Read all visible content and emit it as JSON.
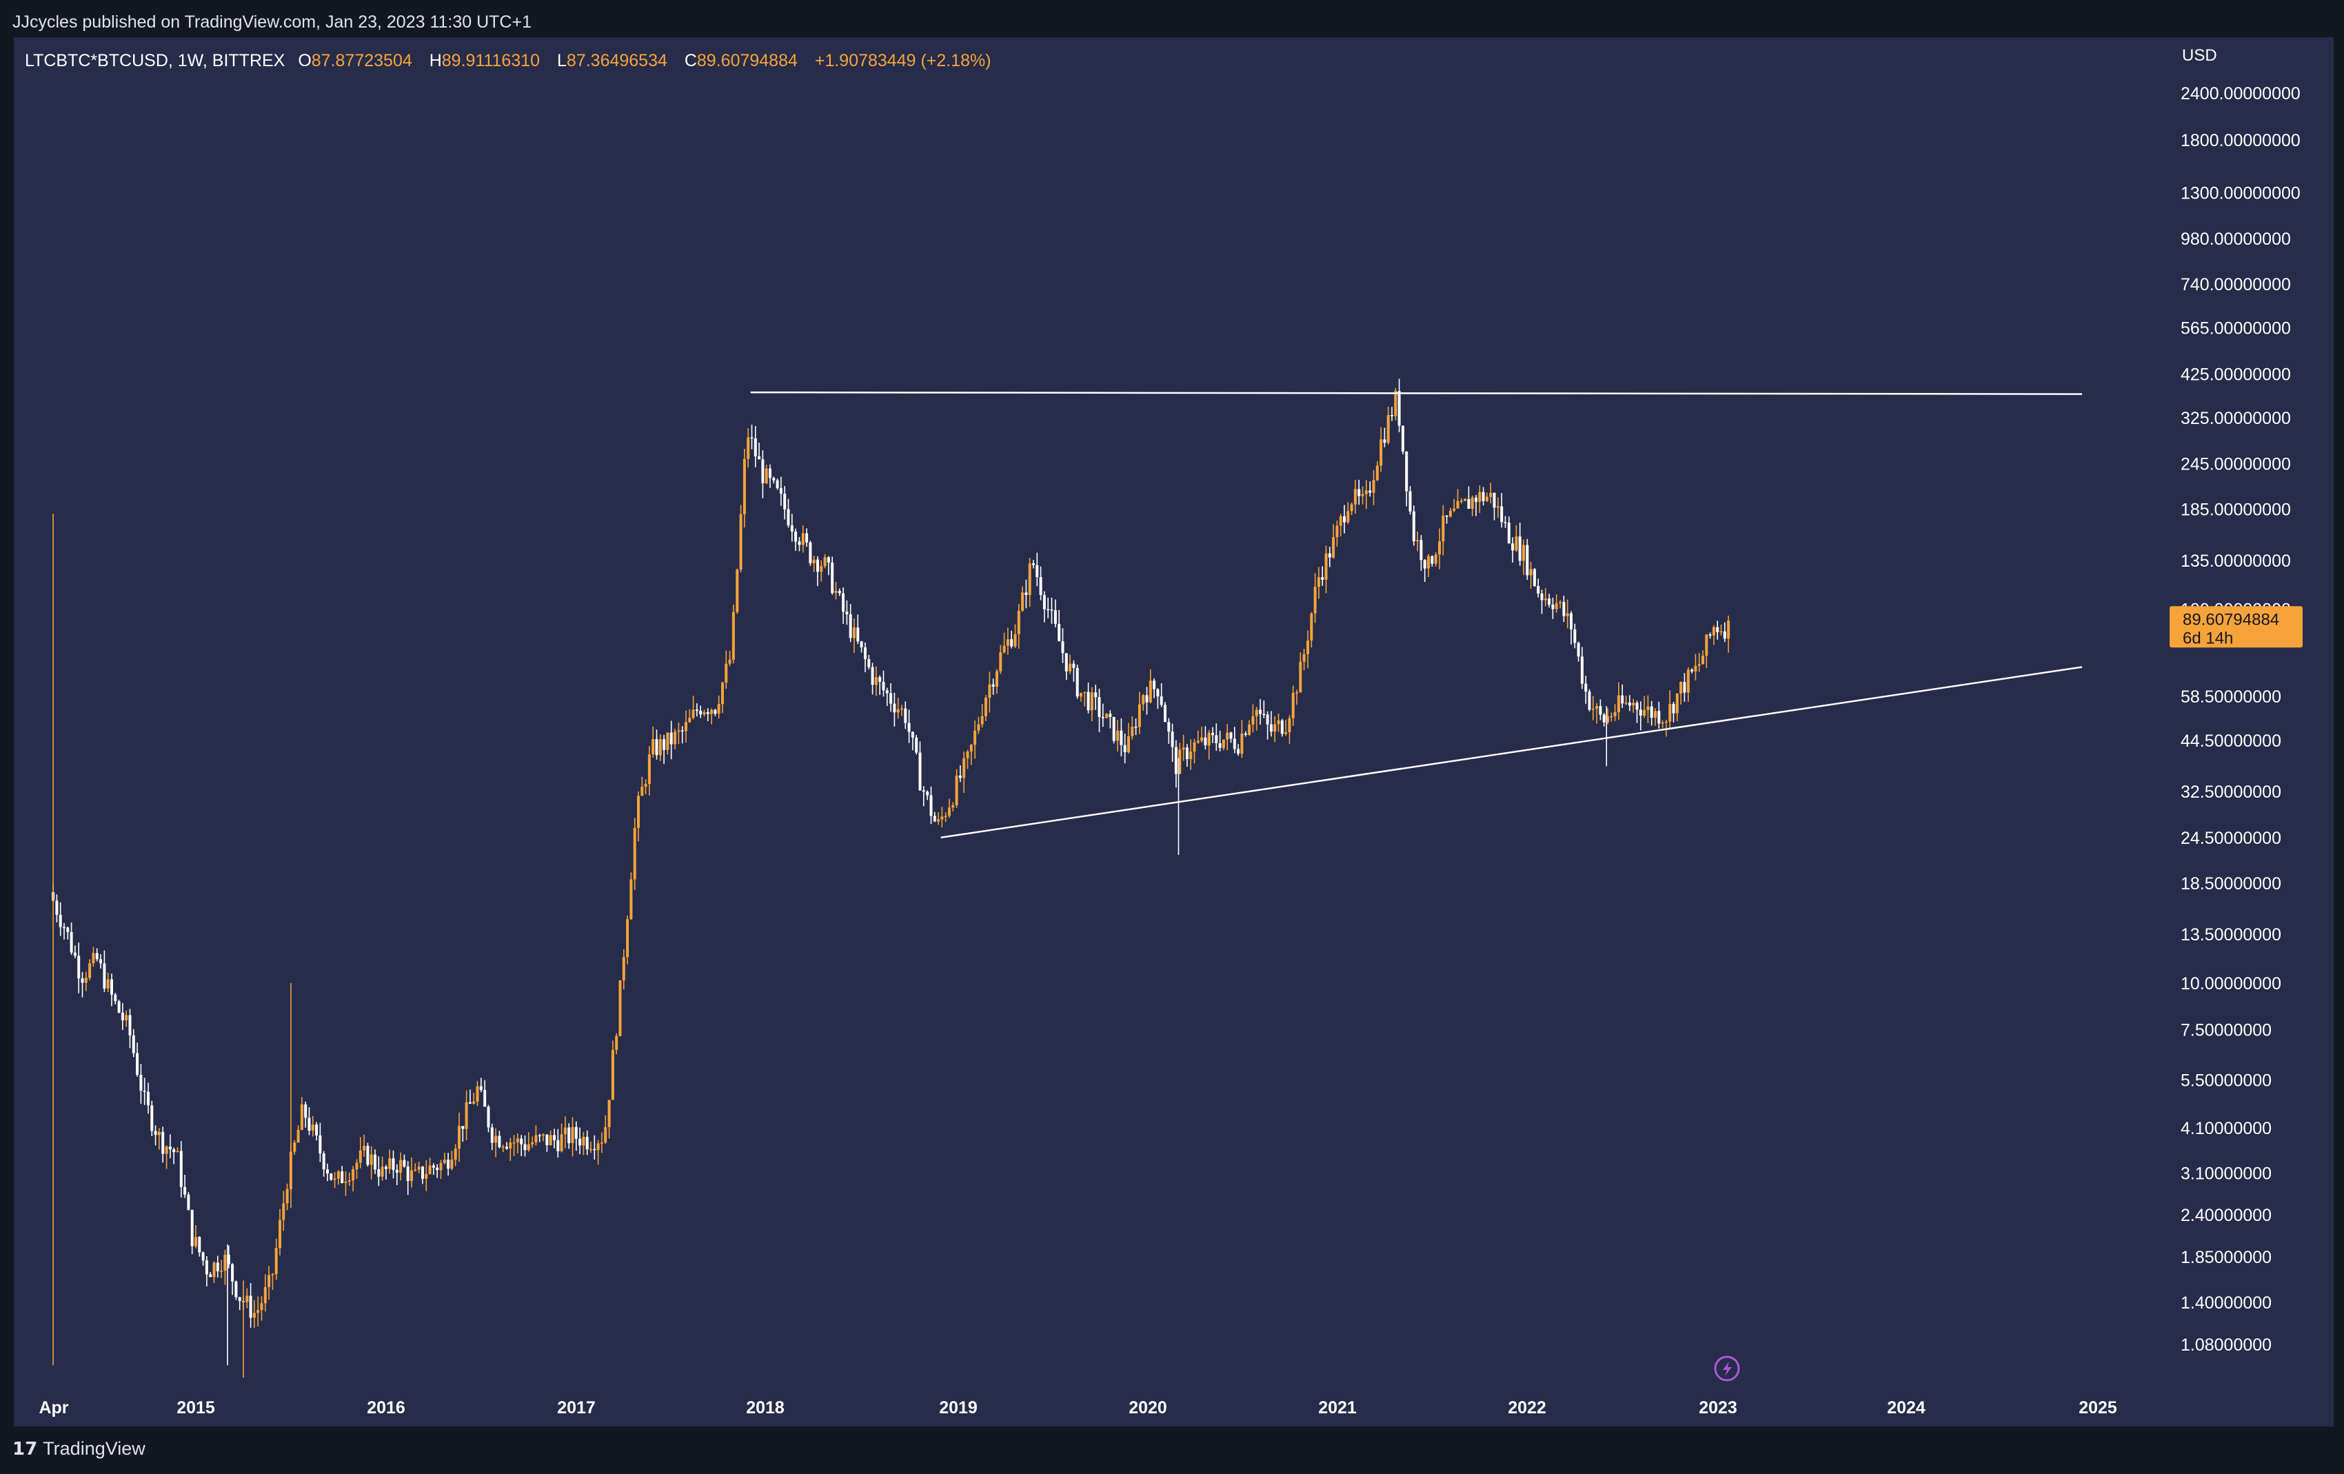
{
  "header": {
    "published": "JJcycles published on TradingView.com, Jan 23, 2023 11:30 UTC+1"
  },
  "legend": {
    "symbol": "LTCBTC*BTCUSD, 1W, BITTREX",
    "o_label": "O",
    "o_value": "87.87723504",
    "h_label": "H",
    "h_value": "89.91116310",
    "l_label": "L",
    "l_value": "87.36496534",
    "c_label": "C",
    "c_value": "89.60794884",
    "change": "+1.90783449 (+2.18%)"
  },
  "footer": {
    "brand": "TradingView"
  },
  "chart_data": {
    "type": "candlestick",
    "interval": "1W",
    "currency": "USD",
    "y_scale": "log",
    "ylim": [
      0.85,
      2900
    ],
    "y_ticks": [
      "2400.00000000",
      "1800.00000000",
      "1300.00000000",
      "980.00000000",
      "740.00000000",
      "565.00000000",
      "425.00000000",
      "325.00000000",
      "245.00000000",
      "185.00000000",
      "135.00000000",
      "100.00000000",
      "58.50000000",
      "44.50000000",
      "32.50000000",
      "24.50000000",
      "18.50000000",
      "13.50000000",
      "10.00000000",
      "7.50000000",
      "5.50000000",
      "4.10000000",
      "3.10000000",
      "2.40000000",
      "1.85000000",
      "1.40000000",
      "1.08000000"
    ],
    "x_ticks": [
      "Apr",
      "2015",
      "2016",
      "2017",
      "2018",
      "2019",
      "2020",
      "2021",
      "2022",
      "2023",
      "2024",
      "2025"
    ],
    "last_price": "89.60794884",
    "countdown": "6d 14h",
    "up_color": "#f7a33b",
    "down_color": "#ffffff",
    "trendlines": [
      {
        "name": "resistance",
        "start": [
          "2017-12",
          380
        ],
        "end": [
          "2024-12",
          376
        ]
      },
      {
        "name": "support",
        "start": [
          "2018-12",
          24.5
        ],
        "end": [
          "2024-12",
          70
        ]
      }
    ],
    "price_path": [
      [
        "2014-04",
        17.5
      ],
      [
        "2014-05",
        14
      ],
      [
        "2014-06",
        10.5
      ],
      [
        "2014-07",
        11.5
      ],
      [
        "2014-08",
        9
      ],
      [
        "2014-09",
        7.5
      ],
      [
        "2014-10",
        4.8
      ],
      [
        "2014-11",
        3.8
      ],
      [
        "2014-12",
        3.5
      ],
      [
        "2015-01",
        2.1
      ],
      [
        "2015-02",
        1.7
      ],
      [
        "2015-03",
        1.85
      ],
      [
        "2015-04",
        1.45
      ],
      [
        "2015-05",
        1.3
      ],
      [
        "2015-06",
        1.6
      ],
      [
        "2015-07",
        3.0
      ],
      [
        "2015-08",
        4.6
      ],
      [
        "2015-09",
        3.6
      ],
      [
        "2015-10",
        2.9
      ],
      [
        "2015-11",
        3.2
      ],
      [
        "2015-12",
        3.5
      ],
      [
        "2016-01",
        3.1
      ],
      [
        "2016-02",
        3.3
      ],
      [
        "2016-03",
        3.0
      ],
      [
        "2016-04",
        3.2
      ],
      [
        "2016-05",
        3.3
      ],
      [
        "2016-06",
        4.2
      ],
      [
        "2016-07",
        5.2
      ],
      [
        "2016-08",
        3.9
      ],
      [
        "2016-09",
        3.8
      ],
      [
        "2016-10",
        3.7
      ],
      [
        "2016-11",
        3.8
      ],
      [
        "2016-12",
        3.8
      ],
      [
        "2017-01",
        3.9
      ],
      [
        "2017-02",
        3.8
      ],
      [
        "2017-03",
        3.9
      ],
      [
        "2017-04",
        9.5
      ],
      [
        "2017-05",
        28
      ],
      [
        "2017-06",
        42
      ],
      [
        "2017-07",
        44
      ],
      [
        "2017-08",
        47
      ],
      [
        "2017-09",
        55
      ],
      [
        "2017-10",
        55
      ],
      [
        "2017-11",
        75
      ],
      [
        "2017-12",
        300
      ],
      [
        "2018-01",
        230
      ],
      [
        "2018-02",
        200
      ],
      [
        "2018-03",
        165
      ],
      [
        "2018-04",
        140
      ],
      [
        "2018-05",
        130
      ],
      [
        "2018-06",
        100
      ],
      [
        "2018-07",
        80
      ],
      [
        "2018-08",
        65
      ],
      [
        "2018-09",
        58
      ],
      [
        "2018-10",
        52
      ],
      [
        "2018-11",
        34
      ],
      [
        "2018-12",
        26
      ],
      [
        "2019-01",
        32
      ],
      [
        "2019-02",
        40
      ],
      [
        "2019-03",
        58
      ],
      [
        "2019-04",
        75
      ],
      [
        "2019-05",
        90
      ],
      [
        "2019-06",
        135
      ],
      [
        "2019-07",
        100
      ],
      [
        "2019-08",
        75
      ],
      [
        "2019-09",
        60
      ],
      [
        "2019-10",
        55
      ],
      [
        "2019-11",
        48
      ],
      [
        "2019-12",
        42
      ],
      [
        "2020-01",
        60
      ],
      [
        "2020-02",
        62
      ],
      [
        "2020-03",
        38
      ],
      [
        "2020-04",
        43
      ],
      [
        "2020-05",
        44
      ],
      [
        "2020-06",
        45
      ],
      [
        "2020-07",
        44
      ],
      [
        "2020-08",
        55
      ],
      [
        "2020-09",
        47
      ],
      [
        "2020-10",
        50
      ],
      [
        "2020-11",
        70
      ],
      [
        "2020-12",
        120
      ],
      [
        "2021-01",
        150
      ],
      [
        "2021-02",
        200
      ],
      [
        "2021-03",
        190
      ],
      [
        "2021-04",
        280
      ],
      [
        "2021-05",
        370
      ],
      [
        "2021-06",
        160
      ],
      [
        "2021-07",
        130
      ],
      [
        "2021-08",
        170
      ],
      [
        "2021-09",
        185
      ],
      [
        "2021-10",
        200
      ],
      [
        "2021-11",
        200
      ],
      [
        "2021-12",
        160
      ],
      [
        "2022-01",
        140
      ],
      [
        "2022-02",
        110
      ],
      [
        "2022-03",
        105
      ],
      [
        "2022-04",
        90
      ],
      [
        "2022-05",
        58
      ],
      [
        "2022-06",
        50
      ],
      [
        "2022-07",
        55
      ],
      [
        "2022-08",
        56
      ],
      [
        "2022-09",
        53
      ],
      [
        "2022-10",
        52
      ],
      [
        "2022-11",
        62
      ],
      [
        "2022-12",
        70
      ],
      [
        "2023-01",
        89.6
      ]
    ]
  }
}
